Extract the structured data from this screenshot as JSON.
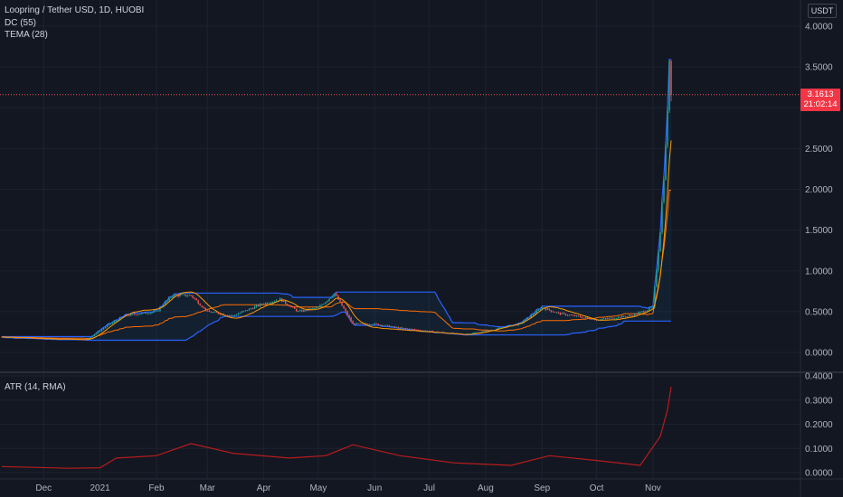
{
  "header": {
    "symbol": "Loopring / Tether USD, 1D, HUOBI",
    "indicator1": "DC (55)",
    "indicator2": "TEMA (28)",
    "sub_indicator": "ATR (14, RMA)",
    "unit": "USDT"
  },
  "price_tag": {
    "value": "3.1613",
    "countdown": "21:02:14",
    "color": "#f23645"
  },
  "colors": {
    "background": "#131722",
    "grid": "#1e2230",
    "up": "#26a69a",
    "down": "#ef5350",
    "donchian": "#2962ff",
    "donchian_basis": "#ff6d00",
    "tema": "#ff9800",
    "atr": "#b71c1c"
  },
  "chart_data": [
    {
      "type": "candlestick",
      "title": "Loopring / Tether USD, 1D, HUOBI",
      "ylim": [
        0,
        4.0
      ],
      "y_ticks": [
        "4.0000",
        "3.5000",
        "3.0000",
        "2.5000",
        "2.0000",
        "1.5000",
        "1.0000",
        "0.5000",
        "0.0000"
      ],
      "x_ticks": [
        "Dec",
        "2021",
        "Feb",
        "Mar",
        "Apr",
        "May",
        "Jun",
        "Jul",
        "Aug",
        "Sep",
        "Oct",
        "Nov"
      ],
      "last_price": 3.1613,
      "price_path_approx": [
        {
          "date": "2020-11-08",
          "close": 0.19
        },
        {
          "date": "2020-12-01",
          "close": 0.17
        },
        {
          "date": "2020-12-25",
          "close": 0.16
        },
        {
          "date": "2021-01-05",
          "close": 0.33
        },
        {
          "date": "2021-01-15",
          "close": 0.45
        },
        {
          "date": "2021-02-01",
          "close": 0.5
        },
        {
          "date": "2021-02-10",
          "close": 0.7
        },
        {
          "date": "2021-02-20",
          "close": 0.7
        },
        {
          "date": "2021-03-01",
          "close": 0.5
        },
        {
          "date": "2021-03-15",
          "close": 0.45
        },
        {
          "date": "2021-04-01",
          "close": 0.6
        },
        {
          "date": "2021-04-10",
          "close": 0.65
        },
        {
          "date": "2021-04-20",
          "close": 0.5
        },
        {
          "date": "2021-05-01",
          "close": 0.55
        },
        {
          "date": "2021-05-10",
          "close": 0.72
        },
        {
          "date": "2021-05-20",
          "close": 0.35
        },
        {
          "date": "2021-06-01",
          "close": 0.35
        },
        {
          "date": "2021-06-15",
          "close": 0.3
        },
        {
          "date": "2021-07-01",
          "close": 0.26
        },
        {
          "date": "2021-07-20",
          "close": 0.22
        },
        {
          "date": "2021-08-01",
          "close": 0.26
        },
        {
          "date": "2021-08-20",
          "close": 0.35
        },
        {
          "date": "2021-09-01",
          "close": 0.55
        },
        {
          "date": "2021-09-10",
          "close": 0.48
        },
        {
          "date": "2021-10-01",
          "close": 0.4
        },
        {
          "date": "2021-10-20",
          "close": 0.45
        },
        {
          "date": "2021-11-01",
          "close": 0.55
        },
        {
          "date": "2021-11-05",
          "close": 1.5
        },
        {
          "date": "2021-11-08",
          "close": 2.5
        },
        {
          "date": "2021-11-10",
          "close": 3.5
        },
        {
          "date": "2021-11-11",
          "close": 3.16
        }
      ]
    },
    {
      "type": "line",
      "title": "ATR (14, RMA)",
      "ylim": [
        0,
        0.4
      ],
      "y_ticks": [
        "0.4000",
        "0.3000",
        "0.2000",
        "0.1000",
        "0.0000"
      ],
      "series": [
        {
          "name": "ATR (14, RMA)",
          "points": [
            {
              "date": "2020-11-08",
              "y": 0.025
            },
            {
              "date": "2020-12-15",
              "y": 0.018
            },
            {
              "date": "2021-01-01",
              "y": 0.02
            },
            {
              "date": "2021-01-10",
              "y": 0.06
            },
            {
              "date": "2021-02-01",
              "y": 0.07
            },
            {
              "date": "2021-02-20",
              "y": 0.12
            },
            {
              "date": "2021-03-15",
              "y": 0.08
            },
            {
              "date": "2021-04-15",
              "y": 0.06
            },
            {
              "date": "2021-05-05",
              "y": 0.07
            },
            {
              "date": "2021-05-20",
              "y": 0.115
            },
            {
              "date": "2021-06-15",
              "y": 0.07
            },
            {
              "date": "2021-07-15",
              "y": 0.04
            },
            {
              "date": "2021-08-15",
              "y": 0.03
            },
            {
              "date": "2021-09-05",
              "y": 0.07
            },
            {
              "date": "2021-10-01",
              "y": 0.05
            },
            {
              "date": "2021-10-25",
              "y": 0.03
            },
            {
              "date": "2021-11-05",
              "y": 0.15
            },
            {
              "date": "2021-11-09",
              "y": 0.26
            },
            {
              "date": "2021-11-11",
              "y": 0.355
            }
          ]
        }
      ]
    }
  ]
}
